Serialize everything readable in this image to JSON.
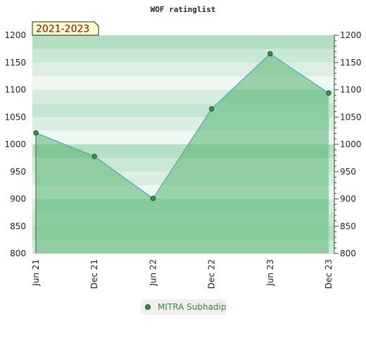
{
  "chart_data": {
    "type": "area",
    "title": "WOF ratinglist",
    "period_label": "2021-2023",
    "categories": [
      "Jun 21",
      "Dec 21",
      "Jun 22",
      "Dec 22",
      "Jun 23",
      "Dec 23"
    ],
    "series": [
      {
        "name": "MITRA Subhadip",
        "values": [
          1021,
          978,
          901,
          1065,
          1166,
          1094
        ]
      }
    ],
    "ylim": [
      800,
      1200
    ],
    "y_ticks": [
      800,
      850,
      900,
      950,
      1000,
      1050,
      1100,
      1150,
      1200
    ],
    "grid": "horizontal bands",
    "legend_position": "bottom-center",
    "colors": {
      "line": "#4aa6c8",
      "fill": "#7cc491",
      "marker": "#3c8f4c",
      "legend_text": "#2e8b3a",
      "period_text": "#8b0000",
      "period_bg": "#ffffcc"
    }
  }
}
